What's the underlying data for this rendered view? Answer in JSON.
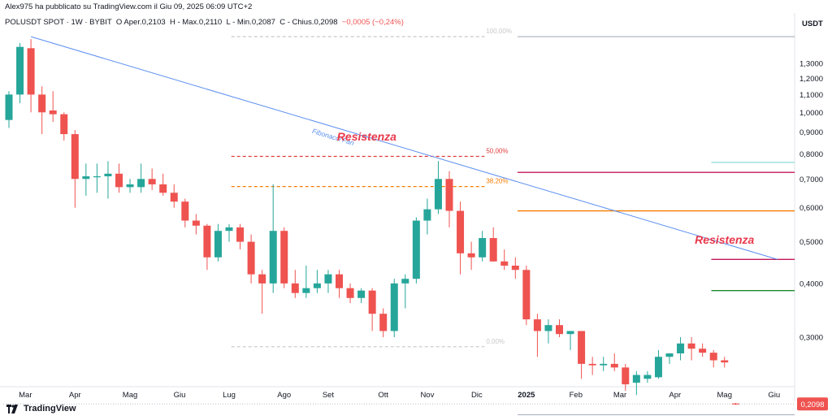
{
  "header": {
    "published": "Alex975 ha pubblicato su TradingView.com il Giu 09, 2025 06:09 UTC+2",
    "symbol": "POLUSDT SPOT · 1W · BYBIT",
    "open_label": "O",
    "open": "Aper.0,2103",
    "high": "H",
    "high_value": "Max.0,2110",
    "low": "L",
    "low_value": "Min.0,2087",
    "close": "C",
    "close_value": "Chius.0,2098",
    "change": "−0,0005 (−0,24%)"
  },
  "currency": "USDT",
  "footer": {
    "brand": "TradingView"
  },
  "colors": {
    "up": "#26a69a",
    "down": "#ef5350",
    "fan": "#5b8ff0",
    "resistance": "#e8394b",
    "orange": "#f57c00",
    "green": "#1b8a2e"
  },
  "chart_data": {
    "type": "candlestick",
    "yscale": "log",
    "ylim": [
      0.19,
      1.55
    ],
    "y_ticks": [
      "1,3000",
      "1,2000",
      "1,1000",
      "1,0000",
      "0,9000",
      "0,8000",
      "0,7000",
      "0,6000",
      "0,5000",
      "0,4000",
      "0,3000"
    ],
    "y_tick_values": [
      1.3,
      1.2,
      1.1,
      1.0,
      0.9,
      0.8,
      0.7,
      0.6,
      0.5,
      0.4,
      0.3
    ],
    "x_labels": [
      "Mar",
      "Apr",
      "Mag",
      "Giu",
      "Lug",
      "Ago",
      "Set",
      "Ott",
      "Nov",
      "Dic",
      "2025",
      "Feb",
      "Mar",
      "Apr",
      "Mag",
      "Giu"
    ],
    "x_label_weeks": [
      1.5,
      6,
      11,
      15.5,
      20,
      25,
      29,
      34,
      38,
      42.5,
      47,
      51.5,
      55.5,
      60.5,
      65,
      69.5
    ],
    "candles": [
      {
        "o": 0.96,
        "h": 1.12,
        "l": 0.92,
        "c": 1.1
      },
      {
        "o": 1.1,
        "h": 1.45,
        "l": 1.05,
        "c": 1.42
      },
      {
        "o": 1.41,
        "h": 1.48,
        "l": 1.0,
        "c": 1.1
      },
      {
        "o": 1.1,
        "h": 1.15,
        "l": 0.89,
        "c": 1.0
      },
      {
        "o": 1.01,
        "h": 1.12,
        "l": 0.95,
        "c": 0.99
      },
      {
        "o": 0.99,
        "h": 1.0,
        "l": 0.86,
        "c": 0.89
      },
      {
        "o": 0.89,
        "h": 0.91,
        "l": 0.6,
        "c": 0.7
      },
      {
        "o": 0.7,
        "h": 0.76,
        "l": 0.64,
        "c": 0.71
      },
      {
        "o": 0.71,
        "h": 0.76,
        "l": 0.65,
        "c": 0.71
      },
      {
        "o": 0.71,
        "h": 0.77,
        "l": 0.63,
        "c": 0.72
      },
      {
        "o": 0.72,
        "h": 0.76,
        "l": 0.65,
        "c": 0.67
      },
      {
        "o": 0.67,
        "h": 0.7,
        "l": 0.65,
        "c": 0.68
      },
      {
        "o": 0.67,
        "h": 0.76,
        "l": 0.65,
        "c": 0.7
      },
      {
        "o": 0.7,
        "h": 0.74,
        "l": 0.66,
        "c": 0.68
      },
      {
        "o": 0.68,
        "h": 0.72,
        "l": 0.64,
        "c": 0.65
      },
      {
        "o": 0.65,
        "h": 0.68,
        "l": 0.6,
        "c": 0.62
      },
      {
        "o": 0.62,
        "h": 0.63,
        "l": 0.54,
        "c": 0.56
      },
      {
        "o": 0.56,
        "h": 0.58,
        "l": 0.52,
        "c": 0.545
      },
      {
        "o": 0.545,
        "h": 0.55,
        "l": 0.43,
        "c": 0.46
      },
      {
        "o": 0.46,
        "h": 0.55,
        "l": 0.45,
        "c": 0.53
      },
      {
        "o": 0.53,
        "h": 0.55,
        "l": 0.5,
        "c": 0.54
      },
      {
        "o": 0.54,
        "h": 0.55,
        "l": 0.48,
        "c": 0.5
      },
      {
        "o": 0.5,
        "h": 0.52,
        "l": 0.4,
        "c": 0.42
      },
      {
        "o": 0.42,
        "h": 0.43,
        "l": 0.34,
        "c": 0.4
      },
      {
        "o": 0.4,
        "h": 0.68,
        "l": 0.38,
        "c": 0.53
      },
      {
        "o": 0.53,
        "h": 0.54,
        "l": 0.39,
        "c": 0.4
      },
      {
        "o": 0.4,
        "h": 0.43,
        "l": 0.37,
        "c": 0.38
      },
      {
        "o": 0.38,
        "h": 0.44,
        "l": 0.37,
        "c": 0.39
      },
      {
        "o": 0.39,
        "h": 0.43,
        "l": 0.38,
        "c": 0.4
      },
      {
        "o": 0.4,
        "h": 0.43,
        "l": 0.38,
        "c": 0.42
      },
      {
        "o": 0.42,
        "h": 0.43,
        "l": 0.37,
        "c": 0.39
      },
      {
        "o": 0.39,
        "h": 0.4,
        "l": 0.36,
        "c": 0.37
      },
      {
        "o": 0.37,
        "h": 0.39,
        "l": 0.36,
        "c": 0.385
      },
      {
        "o": 0.385,
        "h": 0.39,
        "l": 0.31,
        "c": 0.34
      },
      {
        "o": 0.34,
        "h": 0.35,
        "l": 0.3,
        "c": 0.31
      },
      {
        "o": 0.31,
        "h": 0.41,
        "l": 0.3,
        "c": 0.4
      },
      {
        "o": 0.4,
        "h": 0.42,
        "l": 0.35,
        "c": 0.41
      },
      {
        "o": 0.41,
        "h": 0.57,
        "l": 0.4,
        "c": 0.56
      },
      {
        "o": 0.56,
        "h": 0.63,
        "l": 0.52,
        "c": 0.595
      },
      {
        "o": 0.595,
        "h": 0.77,
        "l": 0.58,
        "c": 0.7
      },
      {
        "o": 0.7,
        "h": 0.73,
        "l": 0.54,
        "c": 0.59
      },
      {
        "o": 0.59,
        "h": 0.62,
        "l": 0.42,
        "c": 0.47
      },
      {
        "o": 0.47,
        "h": 0.5,
        "l": 0.43,
        "c": 0.46
      },
      {
        "o": 0.46,
        "h": 0.53,
        "l": 0.45,
        "c": 0.51
      },
      {
        "o": 0.51,
        "h": 0.54,
        "l": 0.45,
        "c": 0.45
      },
      {
        "o": 0.45,
        "h": 0.48,
        "l": 0.43,
        "c": 0.44
      },
      {
        "o": 0.44,
        "h": 0.46,
        "l": 0.41,
        "c": 0.43
      },
      {
        "o": 0.43,
        "h": 0.44,
        "l": 0.32,
        "c": 0.33
      },
      {
        "o": 0.33,
        "h": 0.34,
        "l": 0.27,
        "c": 0.31
      },
      {
        "o": 0.31,
        "h": 0.33,
        "l": 0.29,
        "c": 0.32
      },
      {
        "o": 0.32,
        "h": 0.33,
        "l": 0.3,
        "c": 0.305
      },
      {
        "o": 0.305,
        "h": 0.31,
        "l": 0.28,
        "c": 0.31
      },
      {
        "o": 0.31,
        "h": 0.31,
        "l": 0.24,
        "c": 0.26
      },
      {
        "o": 0.26,
        "h": 0.27,
        "l": 0.245,
        "c": 0.258
      },
      {
        "o": 0.258,
        "h": 0.27,
        "l": 0.25,
        "c": 0.26
      },
      {
        "o": 0.26,
        "h": 0.275,
        "l": 0.25,
        "c": 0.255
      },
      {
        "o": 0.255,
        "h": 0.26,
        "l": 0.225,
        "c": 0.233
      },
      {
        "o": 0.235,
        "h": 0.25,
        "l": 0.22,
        "c": 0.245
      },
      {
        "o": 0.24,
        "h": 0.25,
        "l": 0.235,
        "c": 0.245
      },
      {
        "o": 0.242,
        "h": 0.28,
        "l": 0.24,
        "c": 0.27
      },
      {
        "o": 0.27,
        "h": 0.275,
        "l": 0.26,
        "c": 0.275
      },
      {
        "o": 0.275,
        "h": 0.3,
        "l": 0.265,
        "c": 0.29
      },
      {
        "o": 0.29,
        "h": 0.3,
        "l": 0.265,
        "c": 0.282
      },
      {
        "o": 0.282,
        "h": 0.29,
        "l": 0.27,
        "c": 0.276
      },
      {
        "o": 0.276,
        "h": 0.28,
        "l": 0.255,
        "c": 0.265
      },
      {
        "o": 0.265,
        "h": 0.27,
        "l": 0.255,
        "c": 0.262
      },
      {
        "o": 0.2103,
        "h": 0.211,
        "l": 0.2087,
        "c": 0.2098
      }
    ],
    "fib_levels": [
      {
        "label": "100,00%",
        "value": 1.5,
        "color": "#c8c8c8"
      },
      {
        "label": "50,00%",
        "value": 0.79,
        "color": "#e03a3a"
      },
      {
        "label": "38,20%",
        "value": 0.672,
        "color": "#f57c00"
      },
      {
        "label": "0,00%",
        "value": 0.285,
        "color": "#c8c8c8"
      }
    ],
    "fib_label_colors": [
      "#c8c8c8",
      "#e03a3a",
      "#f57c00",
      "#c8c8c8"
    ],
    "right_levels": [
      {
        "value": 1.5,
        "color": "#b0b8c4"
      },
      {
        "value": 0.765,
        "color": "#9ee3dd"
      },
      {
        "value": 0.725,
        "color": "#c2185b"
      },
      {
        "value": 0.59,
        "color": "#f57c00"
      },
      {
        "value": 0.455,
        "color": "#c2185b"
      },
      {
        "value": 0.385,
        "color": "#1b8a2e"
      },
      {
        "value": 0.198,
        "color": "#b0b8c4"
      }
    ],
    "fan_line": {
      "label": "Fibonacci Fan",
      "from": {
        "week": 2,
        "value": 1.5
      },
      "to": {
        "week": 69.8,
        "value": 0.455
      }
    },
    "annotations": [
      {
        "text": "Resistenza",
        "week": 32.5,
        "value": 0.86,
        "color": "#e8394b"
      },
      {
        "text": "Resistenza",
        "week": 65,
        "value": 0.495,
        "color": "#e8394b"
      }
    ],
    "last_price": "0,2098",
    "last_value": 0.2098
  }
}
